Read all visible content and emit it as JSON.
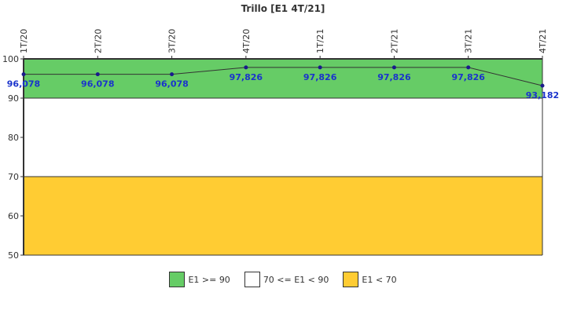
{
  "chart_data": {
    "type": "line",
    "title": "Trillo [E1 4T/21]",
    "categories": [
      "1T/20",
      "2T/20",
      "3T/20",
      "4T/20",
      "1T/21",
      "2T/21",
      "3T/21",
      "4T/21"
    ],
    "series": [
      {
        "values": [
          96.078,
          96.078,
          96.078,
          97.826,
          97.826,
          97.826,
          97.826,
          93.182
        ],
        "labels": [
          "96,078",
          "96,078",
          "96,078",
          "97,826",
          "97,826",
          "97,826",
          "97,826",
          "93,182"
        ],
        "color": "#1a1a8c"
      }
    ],
    "ylim": [
      50,
      100
    ],
    "yticks": [
      50,
      60,
      70,
      80,
      90,
      100
    ],
    "bands": [
      {
        "from": 90,
        "to": 100,
        "color": "#66cc66",
        "label": "E1 >= 90"
      },
      {
        "from": 70,
        "to": 90,
        "color": "#ffffff",
        "label": "70 <= E1 < 90"
      },
      {
        "from": 50,
        "to": 70,
        "color": "#ffcc33",
        "label": "E1 < 70"
      }
    ],
    "legend_position": "bottom"
  }
}
